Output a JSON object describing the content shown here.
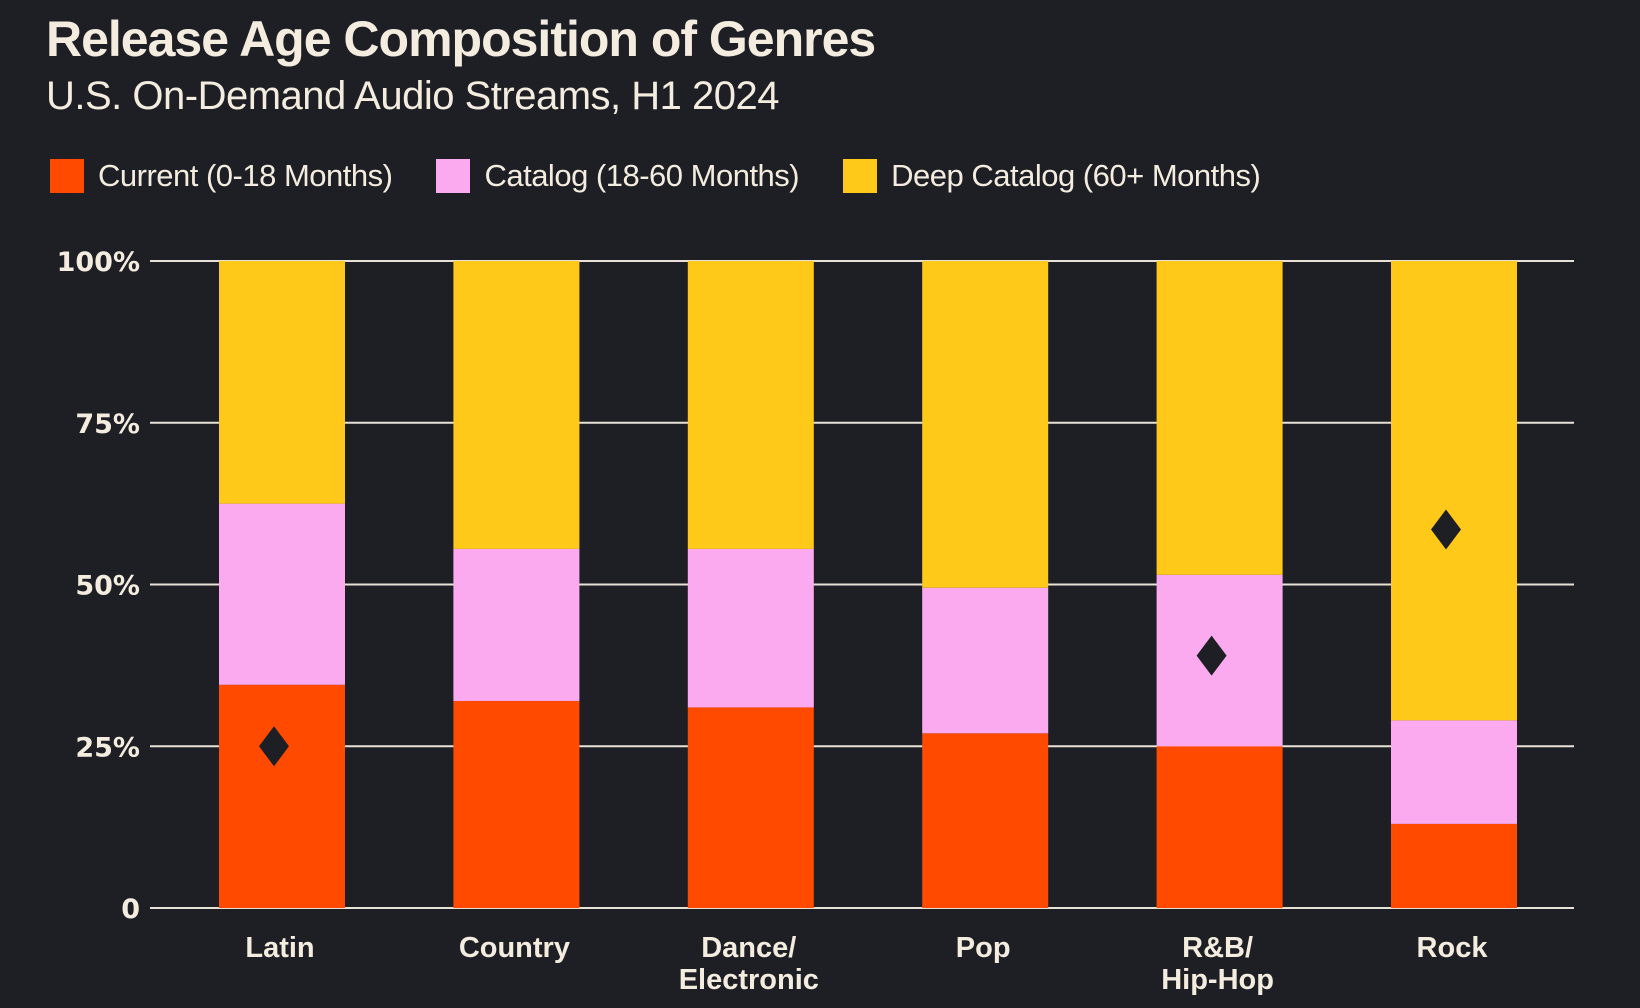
{
  "title": "Release Age Composition of Genres",
  "subtitle": "U.S. On-Demand Audio Streams, H1 2024",
  "colors": {
    "background": "#1e1f25",
    "current": "#ff4a00",
    "catalog": "#fcaaf0",
    "deep_catalog": "#ffc91a",
    "gridline": "#e8e2d6",
    "marker": "#1e1f25"
  },
  "legend": [
    {
      "label": "Current (0-18 Months)",
      "color_key": "current"
    },
    {
      "label": "Catalog (18-60 Months)",
      "color_key": "catalog"
    },
    {
      "label": "Deep Catalog (60+ Months)",
      "color_key": "deep_catalog"
    }
  ],
  "chart_data": {
    "type": "bar",
    "stacked": true,
    "categories": [
      "Latin",
      "Country",
      "Dance/\nElectronic",
      "Pop",
      "R&B/\nHip-Hop",
      "Rock"
    ],
    "series": [
      {
        "name": "Current (0-18 Months)",
        "color_key": "current",
        "values": [
          34.5,
          32,
          31,
          27,
          25,
          13
        ]
      },
      {
        "name": "Catalog (18-60 Months)",
        "color_key": "catalog",
        "values": [
          28,
          23.5,
          24.5,
          22.5,
          26.5,
          16
        ]
      },
      {
        "name": "Deep Catalog (60+ Months)",
        "color_key": "deep_catalog",
        "values": [
          37.5,
          44.5,
          44.5,
          50.5,
          48.5,
          71
        ]
      }
    ],
    "markers": [
      {
        "category": "Latin",
        "value": 25,
        "shape": "diamond-icon"
      },
      {
        "category": "R&B/\nHip-Hop",
        "value": 39,
        "shape": "diamond-icon"
      },
      {
        "category": "Rock",
        "value": 58.5,
        "shape": "diamond-icon"
      }
    ],
    "yticks": [
      {
        "value": 0,
        "label": "0"
      },
      {
        "value": 25,
        "label": "25%"
      },
      {
        "value": 50,
        "label": "50%"
      },
      {
        "value": 75,
        "label": "75%"
      },
      {
        "value": 100,
        "label": "100%"
      }
    ],
    "ylim": [
      0,
      100
    ],
    "xlabel": "",
    "ylabel": "",
    "grid": true,
    "legend_position": "top-left"
  }
}
